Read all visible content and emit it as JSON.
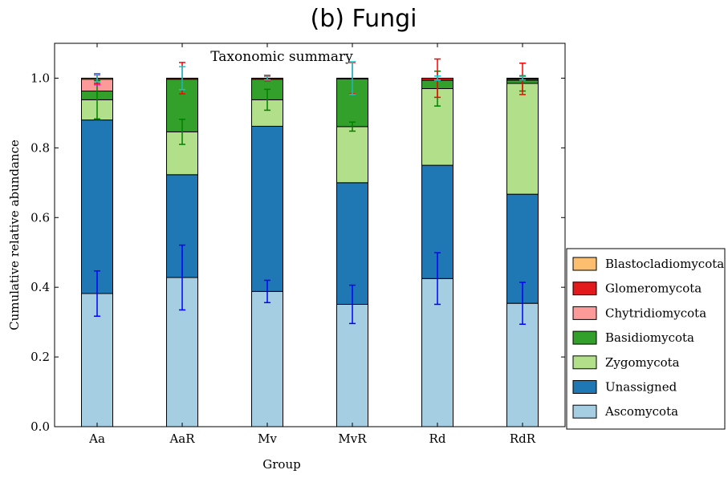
{
  "figure": {
    "suptitle": "(b) Fungi"
  },
  "chart_data": {
    "type": "bar",
    "stacked": true,
    "title": "Taxonomic summary",
    "xlabel": "Group",
    "ylabel": "Cumulative relative abundance",
    "ylim": [
      0,
      1.1
    ],
    "yticks": [
      0.0,
      0.2,
      0.4,
      0.6,
      0.8,
      1.0
    ],
    "ytick_labels": [
      "0.0",
      "0.2",
      "0.4",
      "0.6",
      "0.8",
      "1.0"
    ],
    "categories": [
      "Aa",
      "AaR",
      "Mv",
      "MvR",
      "Rd",
      "RdR"
    ],
    "grid": false,
    "legend_position": "right",
    "legend_order": [
      "Blastocladiomycota",
      "Glomeromycota",
      "Chytridiomycota",
      "Basidiomycota",
      "Zygomycota",
      "Unassigned",
      "Ascomycota"
    ],
    "series": [
      {
        "name": "Ascomycota",
        "color": "#a6cee3",
        "error_color": "#0000ff",
        "values": [
          0.382,
          0.428,
          0.388,
          0.351,
          0.425,
          0.354
        ],
        "errors": [
          0.065,
          0.093,
          0.032,
          0.055,
          0.074,
          0.06
        ]
      },
      {
        "name": "Unassigned",
        "color": "#1f78b4",
        "error_color": "#0000ff",
        "values": [
          0.498,
          0.295,
          0.474,
          0.349,
          0.325,
          0.313
        ],
        "errors": [
          0.0,
          0.0,
          0.0,
          0.0,
          0.0,
          0.0
        ]
      },
      {
        "name": "Zygomycota",
        "color": "#b2df8a",
        "error_color": "#008000",
        "values": [
          0.058,
          0.123,
          0.076,
          0.161,
          0.22,
          0.318
        ],
        "errors": [
          0.055,
          0.036,
          0.03,
          0.013,
          0.05,
          0.022
        ]
      },
      {
        "name": "Basidiomycota",
        "color": "#33a02c",
        "error_color": "#008000",
        "values": [
          0.025,
          0.151,
          0.059,
          0.137,
          0.024,
          0.009
        ],
        "errors": [
          0.0,
          0.0,
          0.0,
          0.0,
          0.0,
          0.0
        ]
      },
      {
        "name": "Chytridiomycota",
        "color": "#fb9a99",
        "error_color": "#ff00ff",
        "values": [
          0.034,
          0.0,
          0.0,
          0.0,
          0.0,
          0.0
        ],
        "errors": [
          0.016,
          0.0,
          0.0,
          0.0,
          0.0,
          0.0
        ]
      },
      {
        "name": "Glomeromycota",
        "color": "#e31a1c",
        "error_color": "#ff0000",
        "values": [
          0.0,
          0.003,
          0.003,
          0.002,
          0.006,
          0.004
        ],
        "errors": [
          0.012,
          0.045,
          0.008,
          0.045,
          0.055,
          0.045
        ]
      },
      {
        "name": "Blastocladiomycota",
        "color": "#fdbf6f",
        "error_color": "#00ced1",
        "values": [
          0.003,
          0.0,
          0.0,
          0.0,
          0.0,
          0.002
        ],
        "errors": [
          0.01,
          0.033,
          0.005,
          0.047,
          0.006,
          0.005
        ]
      }
    ]
  }
}
